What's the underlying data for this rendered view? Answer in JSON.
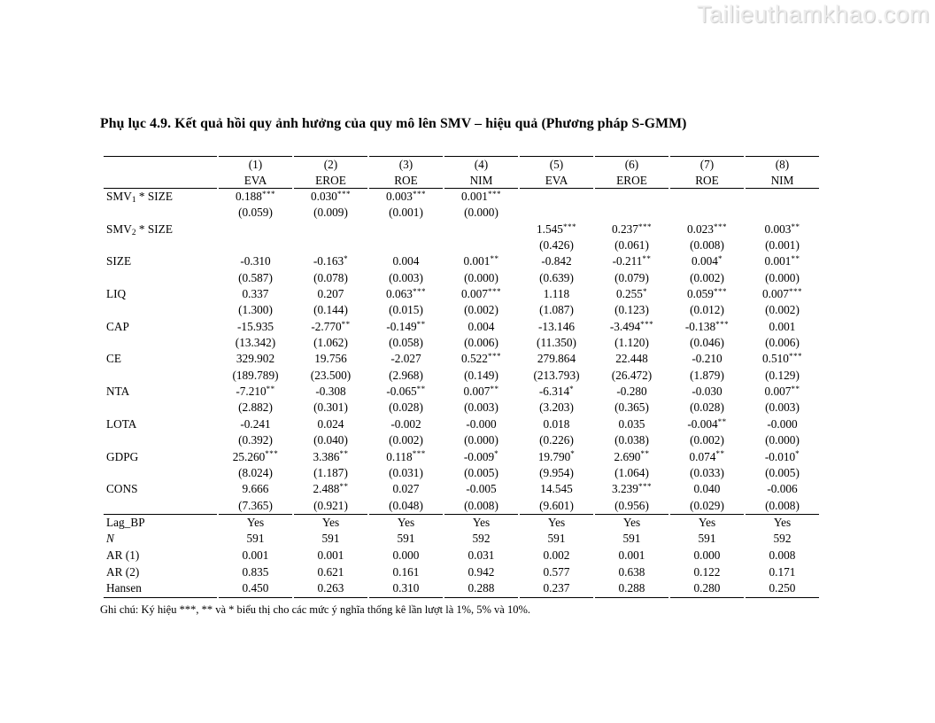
{
  "page": {
    "watermark": "Tailieuthamkhao.com",
    "title": "Phụ lục 4.9. Kết quả hồi quy ảnh hưởng của quy mô lên SMV – hiệu quả (Phương pháp S-GMM)",
    "note": "Ghi chú: Ký hiệu ***, ** và * biểu thị cho các mức ý nghĩa thống kê lần lượt là 1%, 5% và 10%."
  },
  "table": {
    "col_numbers": [
      "(1)",
      "(2)",
      "(3)",
      "(4)",
      "(5)",
      "(6)",
      "(7)",
      "(8)"
    ],
    "col_models": [
      "EVA",
      "EROE",
      "ROE",
      "NIM",
      "EVA",
      "EROE",
      "ROE",
      "NIM"
    ],
    "rows": [
      {
        "label": "SMV~1~ * SIZE",
        "coefs": [
          "0.188***",
          "0.030***",
          "0.003***",
          "0.001***",
          "",
          "",
          "",
          ""
        ],
        "ses": [
          "(0.059)",
          "(0.009)",
          "(0.001)",
          "(0.000)",
          "",
          "",
          "",
          ""
        ]
      },
      {
        "label": "SMV~2~ * SIZE",
        "coefs": [
          "",
          "",
          "",
          "",
          "1.545***",
          "0.237***",
          "0.023***",
          "0.003**"
        ],
        "ses": [
          "",
          "",
          "",
          "",
          "(0.426)",
          "(0.061)",
          "(0.008)",
          "(0.001)"
        ]
      },
      {
        "label": "SIZE",
        "coefs": [
          "-0.310",
          "-0.163*",
          "0.004",
          "0.001**",
          "-0.842",
          "-0.211**",
          "0.004*",
          "0.001**"
        ],
        "ses": [
          "(0.587)",
          "(0.078)",
          "(0.003)",
          "(0.000)",
          "(0.639)",
          "(0.079)",
          "(0.002)",
          "(0.000)"
        ]
      },
      {
        "label": "LIQ",
        "coefs": [
          "0.337",
          "0.207",
          "0.063***",
          "0.007***",
          "1.118",
          "0.255*",
          "0.059***",
          "0.007***"
        ],
        "ses": [
          "(1.300)",
          "(0.144)",
          "(0.015)",
          "(0.002)",
          "(1.087)",
          "(0.123)",
          "(0.012)",
          "(0.002)"
        ]
      },
      {
        "label": "CAP",
        "coefs": [
          "-15.935",
          "-2.770**",
          "-0.149**",
          "0.004",
          "-13.146",
          "-3.494***",
          "-0.138***",
          "0.001"
        ],
        "ses": [
          "(13.342)",
          "(1.062)",
          "(0.058)",
          "(0.006)",
          "(11.350)",
          "(1.120)",
          "(0.046)",
          "(0.006)"
        ]
      },
      {
        "label": "CE",
        "coefs": [
          "329.902",
          "19.756",
          "-2.027",
          "0.522***",
          "279.864",
          "22.448",
          "-0.210",
          "0.510***"
        ],
        "ses": [
          "(189.789)",
          "(23.500)",
          "(2.968)",
          "(0.149)",
          "(213.793)",
          "(26.472)",
          "(1.879)",
          "(0.129)"
        ]
      },
      {
        "label": "NTA",
        "coefs": [
          "-7.210**",
          "-0.308",
          "-0.065**",
          "0.007**",
          "-6.314*",
          "-0.280",
          "-0.030",
          "0.007**"
        ],
        "ses": [
          "(2.882)",
          "(0.301)",
          "(0.028)",
          "(0.003)",
          "(3.203)",
          "(0.365)",
          "(0.028)",
          "(0.003)"
        ]
      },
      {
        "label": "LOTA",
        "coefs": [
          "-0.241",
          "0.024",
          "-0.002",
          "-0.000",
          "0.018",
          "0.035",
          "-0.004**",
          "-0.000"
        ],
        "ses": [
          "(0.392)",
          "(0.040)",
          "(0.002)",
          "(0.000)",
          "(0.226)",
          "(0.038)",
          "(0.002)",
          "(0.000)"
        ]
      },
      {
        "label": "GDPG",
        "coefs": [
          "25.260***",
          "3.386**",
          "0.118***",
          "-0.009*",
          "19.790*",
          "2.690**",
          "0.074**",
          "-0.010*"
        ],
        "ses": [
          "(8.024)",
          "(1.187)",
          "(0.031)",
          "(0.005)",
          "(9.954)",
          "(1.064)",
          "(0.033)",
          "(0.005)"
        ]
      },
      {
        "label": "CONS",
        "coefs": [
          "9.666",
          "2.488**",
          "0.027",
          "-0.005",
          "14.545",
          "3.239***",
          "0.040",
          "-0.006"
        ],
        "ses": [
          "(7.365)",
          "(0.921)",
          "(0.048)",
          "(0.008)",
          "(9.601)",
          "(0.956)",
          "(0.029)",
          "(0.008)"
        ]
      }
    ],
    "stats": [
      {
        "label": "Lag_BP",
        "italic": false,
        "values": [
          "Yes",
          "Yes",
          "Yes",
          "Yes",
          "Yes",
          "Yes",
          "Yes",
          "Yes"
        ]
      },
      {
        "label": "N",
        "italic": true,
        "values": [
          "591",
          "591",
          "591",
          "592",
          "591",
          "591",
          "591",
          "592"
        ]
      },
      {
        "label": "AR (1)",
        "italic": false,
        "values": [
          "0.001",
          "0.001",
          "0.000",
          "0.031",
          "0.002",
          "0.001",
          "0.000",
          "0.008"
        ]
      },
      {
        "label": "AR (2)",
        "italic": false,
        "values": [
          "0.835",
          "0.621",
          "0.161",
          "0.942",
          "0.577",
          "0.638",
          "0.122",
          "0.171"
        ]
      },
      {
        "label": "Hansen",
        "italic": false,
        "values": [
          "0.450",
          "0.263",
          "0.310",
          "0.288",
          "0.237",
          "0.288",
          "0.280",
          "0.250"
        ]
      }
    ]
  }
}
